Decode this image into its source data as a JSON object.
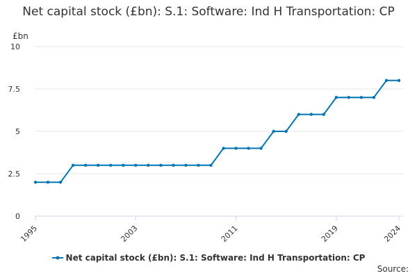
{
  "title": "Net capital stock (£bn): S.1: Software: Ind H Transportation: CP",
  "source_label": "Source:",
  "colors": {
    "series": "#0075b3",
    "grid": "#e6e6e6",
    "axis": "#ccd6eb",
    "text": "#333333"
  },
  "chart_data": {
    "type": "line",
    "title": "Net capital stock (£bn): S.1: Software: Ind H Transportation: CP",
    "ylabel": "£bn",
    "xlabel": "",
    "ylim": [
      0,
      10
    ],
    "xlim": [
      1995,
      2024
    ],
    "y_ticks": [
      0,
      2.5,
      5,
      7.5,
      10
    ],
    "y_tick_labels": [
      "0",
      "2.5",
      "5",
      "7.5",
      "10"
    ],
    "x_ticks": [
      1995,
      2003,
      2011,
      2019,
      2024
    ],
    "x_tick_labels": [
      "1995",
      "2003",
      "2011",
      "2019",
      "2024"
    ],
    "grid": "horizontal",
    "legend_position": "bottom",
    "series": [
      {
        "name": "Net capital stock (£bn): S.1: Software: Ind H Transportation: CP",
        "x": [
          1995,
          1996,
          1997,
          1998,
          1999,
          2000,
          2001,
          2002,
          2003,
          2004,
          2005,
          2006,
          2007,
          2008,
          2009,
          2010,
          2011,
          2012,
          2013,
          2014,
          2015,
          2016,
          2017,
          2018,
          2019,
          2020,
          2021,
          2022,
          2023,
          2024
        ],
        "values": [
          2,
          2,
          2,
          3,
          3,
          3,
          3,
          3,
          3,
          3,
          3,
          3,
          3,
          3,
          3,
          4,
          4,
          4,
          4,
          5,
          5,
          6,
          6,
          6,
          7,
          7,
          7,
          7,
          8,
          8
        ]
      }
    ]
  }
}
